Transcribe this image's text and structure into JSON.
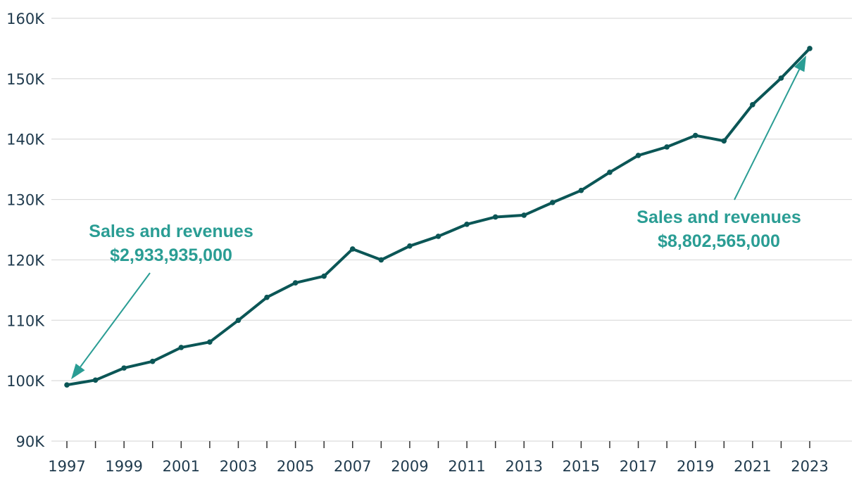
{
  "chart_data": {
    "type": "line",
    "title": "",
    "xlabel": "",
    "ylabel": "",
    "x": [
      1997,
      1998,
      1999,
      2000,
      2001,
      2002,
      2003,
      2004,
      2005,
      2006,
      2007,
      2008,
      2009,
      2010,
      2011,
      2012,
      2013,
      2014,
      2015,
      2016,
      2017,
      2018,
      2019,
      2020,
      2021,
      2022,
      2023
    ],
    "values": [
      99300,
      100100,
      102100,
      103200,
      105500,
      106400,
      110000,
      113800,
      116200,
      117300,
      121800,
      120000,
      122300,
      123900,
      125900,
      127100,
      127400,
      129500,
      131500,
      134500,
      137300,
      138700,
      140600,
      139700,
      145700,
      150100,
      155000
    ],
    "ylim": [
      90000,
      160000
    ],
    "xlim": [
      1997,
      2023
    ],
    "y_ticks": [
      90000,
      100000,
      110000,
      120000,
      130000,
      140000,
      150000,
      160000
    ],
    "y_tick_labels": [
      "90K",
      "100K",
      "110K",
      "120K",
      "130K",
      "140K",
      "150K",
      "160K"
    ],
    "x_tick_labels": [
      "1997",
      "1999",
      "2001",
      "2003",
      "2005",
      "2007",
      "2009",
      "2011",
      "2013",
      "2015",
      "2017",
      "2019",
      "2021",
      "2023"
    ],
    "grid": true,
    "colors": {
      "line": "#0b5656",
      "annotation": "#2a9d94",
      "grid": "#dcdcdc",
      "text": "#1f3a4d"
    },
    "annotations": [
      {
        "label": "Sales and revenues",
        "value": "$2,933,935,000",
        "x": 1997
      },
      {
        "label": "Sales and revenues",
        "value": "$8,802,565,000",
        "x": 2023
      }
    ]
  }
}
